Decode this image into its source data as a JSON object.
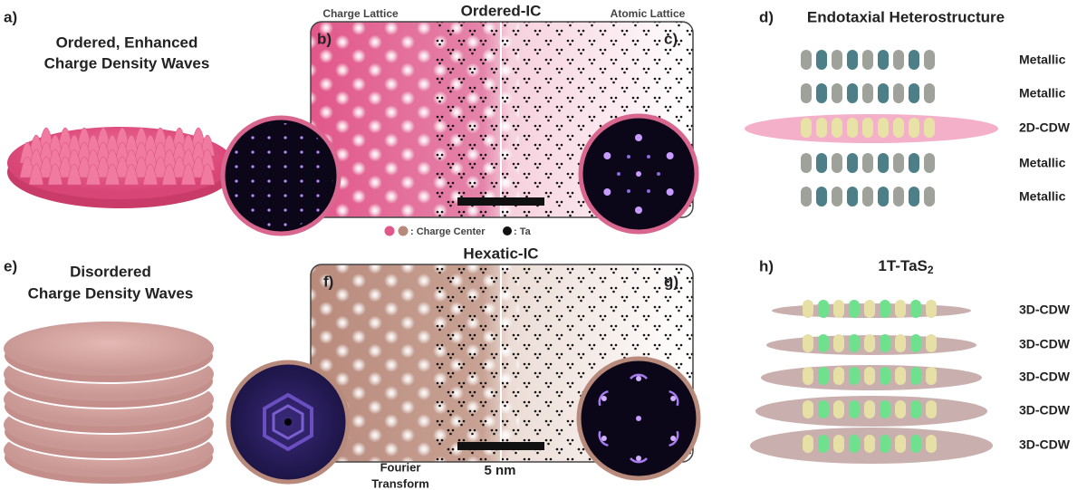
{
  "panel_a": {
    "label": "a)",
    "title_lines": [
      "Ordered, Enhanced",
      "Charge Density Waves"
    ]
  },
  "panel_bc": {
    "left_caption": "Charge Lattice",
    "title": "Ordered-IC",
    "right_caption": "Atomic Lattice",
    "label_b": "b)",
    "label_c": "c)"
  },
  "legend": {
    "charge_center": ": Charge Center",
    "ta": ": Ta"
  },
  "panel_d": {
    "label": "d)",
    "title": "Endotaxial Heterostructure",
    "layers": [
      "Metallic",
      "Metallic",
      "2D-CDW",
      "Metallic",
      "Metallic"
    ]
  },
  "panel_e": {
    "label": "e)",
    "title_lines": [
      "Disordered",
      "Charge Density Waves"
    ]
  },
  "panel_fg": {
    "title": "Hexatic-IC",
    "label_f": "f)",
    "label_g": "g)",
    "fft_caption": [
      "Fourier",
      "Transform"
    ],
    "scale_bar": "5 nm"
  },
  "panel_h": {
    "label": "h)",
    "title": "1T-TaS",
    "title_subscript": "2",
    "layers": [
      "3D-CDW",
      "3D-CDW",
      "3D-CDW",
      "3D-CDW",
      "3D-CDW"
    ]
  }
}
